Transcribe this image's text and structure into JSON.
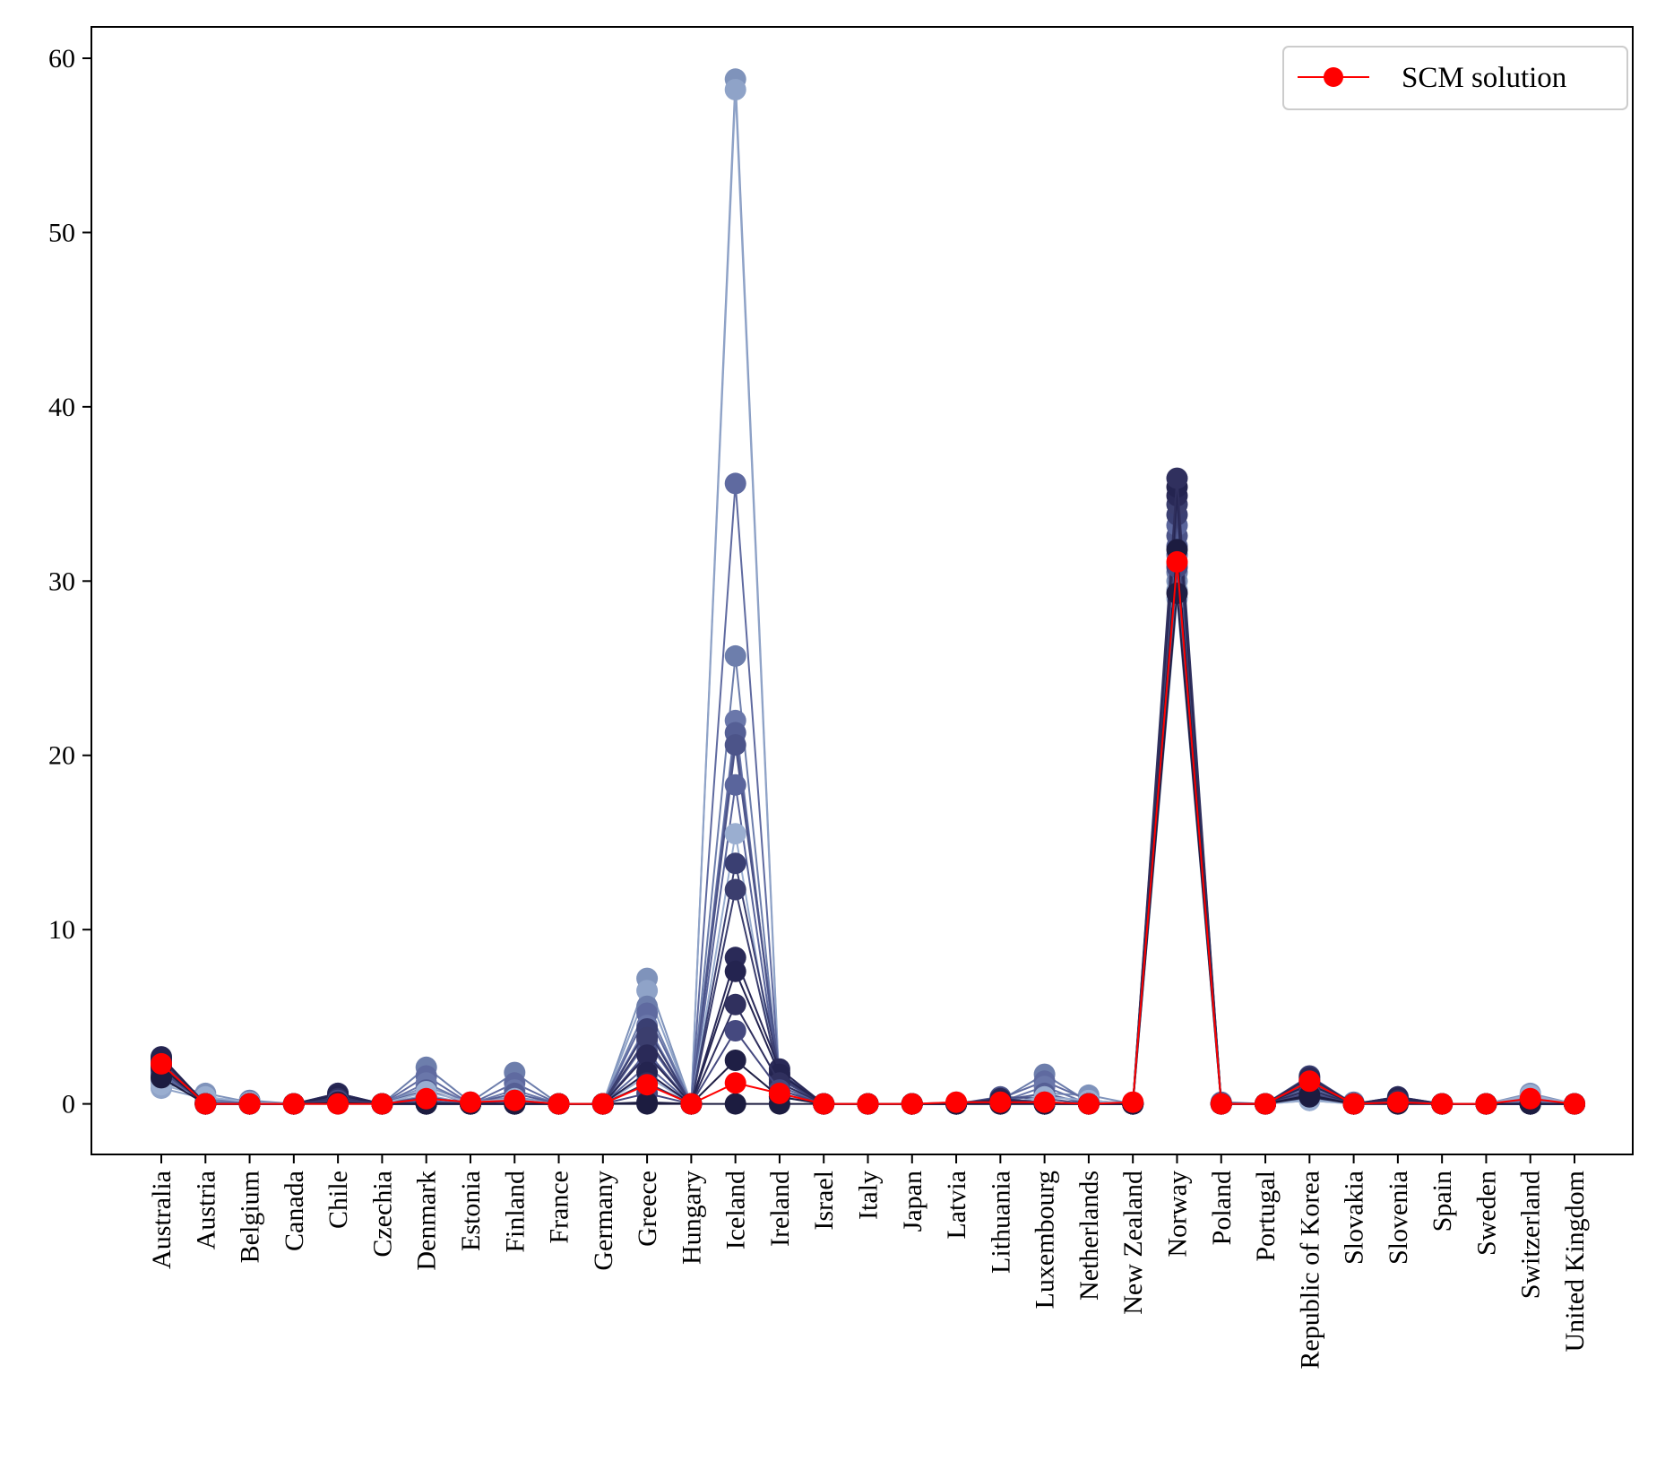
{
  "chart_data": {
    "type": "line",
    "categories": [
      "Australia",
      "Austria",
      "Belgium",
      "Canada",
      "Chile",
      "Czechia",
      "Denmark",
      "Estonia",
      "Finland",
      "France",
      "Germany",
      "Greece",
      "Hungary",
      "Iceland",
      "Ireland",
      "Israel",
      "Italy",
      "Japan",
      "Latvia",
      "Lithuania",
      "Luxembourg",
      "Netherlands",
      "New Zealand",
      "Norway",
      "Poland",
      "Portugal",
      "Republic of Korea",
      "Slovakia",
      "Slovenia",
      "Spain",
      "Sweden",
      "Switzerland",
      "United Kingdom"
    ],
    "ylim": [
      -2.9,
      61.8
    ],
    "yticks": [
      0,
      10,
      20,
      30,
      40,
      50,
      60
    ],
    "grid": false,
    "legend_position": "top-right",
    "background_series": [
      {
        "color": "#7f93bb",
        "values": [
          1.2,
          0.6,
          0.1,
          0,
          0.1,
          0,
          1.0,
          0.1,
          0.4,
          0,
          0,
          7.2,
          0,
          58.8,
          0.6,
          0,
          0,
          0,
          0,
          0.1,
          0.6,
          0.5,
          0,
          30.0,
          0,
          0,
          0.3,
          0,
          0,
          0,
          0,
          0.6,
          0
        ]
      },
      {
        "color": "#8fa3c8",
        "values": [
          0.9,
          0.3,
          0,
          0,
          0,
          0,
          0.5,
          0,
          0.2,
          0,
          0,
          6.5,
          0,
          58.2,
          0.4,
          0,
          0,
          0,
          0,
          0,
          0.4,
          0.2,
          0,
          29.5,
          0,
          0,
          0.2,
          0,
          0,
          0,
          0,
          0.4,
          0
        ]
      },
      {
        "color": "#6d7eac",
        "values": [
          1.4,
          0.2,
          0.2,
          0,
          0.3,
          0,
          2.1,
          0.1,
          1.8,
          0,
          0,
          5.6,
          0,
          25.7,
          1.0,
          0,
          0,
          0,
          0.1,
          0.2,
          1.7,
          0.1,
          0.1,
          30.5,
          0,
          0,
          0.5,
          0.1,
          0.1,
          0,
          0,
          0.3,
          0
        ]
      },
      {
        "color": "#5f6aa0",
        "values": [
          1.6,
          0.1,
          0.1,
          0,
          0.4,
          0,
          1.6,
          0,
          1.2,
          0,
          0,
          5.2,
          0,
          35.6,
          1.2,
          0,
          0,
          0,
          0,
          0.3,
          1.3,
          0.2,
          0,
          31.0,
          0.1,
          0,
          0.7,
          0,
          0.2,
          0,
          0,
          0.1,
          0
        ]
      },
      {
        "color": "#6a77aa",
        "values": [
          1.8,
          0,
          0,
          0,
          0.2,
          0,
          1.2,
          0,
          0.8,
          0,
          0,
          4.5,
          0,
          22.0,
          0.8,
          0,
          0,
          0,
          0,
          0.1,
          1.0,
          0,
          0,
          31.5,
          0,
          0,
          1.0,
          0,
          0,
          0,
          0,
          0.2,
          0
        ]
      },
      {
        "color": "#555f95",
        "values": [
          2.0,
          0,
          0,
          0,
          0.5,
          0,
          0.8,
          0,
          0.6,
          0,
          0,
          3.6,
          0,
          21.3,
          1.4,
          0,
          0,
          0,
          0,
          0.2,
          0.6,
          0,
          0,
          32.0,
          0,
          0,
          1.2,
          0,
          0.3,
          0,
          0,
          0,
          0
        ]
      },
      {
        "color": "#4c5489",
        "values": [
          2.2,
          0,
          0,
          0,
          0.6,
          0,
          0.4,
          0,
          0.3,
          0,
          0,
          3.0,
          0,
          20.6,
          1.6,
          0,
          0,
          0,
          0,
          0.4,
          0.3,
          0,
          0,
          32.6,
          0,
          0,
          1.4,
          0,
          0.4,
          0,
          0,
          0,
          0
        ]
      },
      {
        "color": "#5a659c",
        "values": [
          1.7,
          0,
          0,
          0,
          0.3,
          0,
          0.2,
          0,
          0.1,
          0,
          0,
          2.2,
          0,
          18.3,
          1.0,
          0,
          0,
          0,
          0,
          0.1,
          0.1,
          0,
          0,
          33.2,
          0,
          0,
          0.9,
          0,
          0.1,
          0,
          0,
          0,
          0
        ]
      },
      {
        "color": "#9aaed0",
        "values": [
          1.1,
          0.4,
          0.1,
          0,
          0.1,
          0,
          0.7,
          0.1,
          0.3,
          0,
          0,
          1.6,
          0,
          15.5,
          0.5,
          0,
          0,
          0,
          0,
          0,
          0.4,
          0.2,
          0,
          29.0,
          0,
          0,
          0.2,
          0,
          0,
          0,
          0,
          0.5,
          0
        ]
      },
      {
        "color": "#3a3f72",
        "values": [
          2.4,
          0,
          0,
          0,
          0.4,
          0,
          0.1,
          0,
          0.2,
          0,
          0,
          4.3,
          0,
          13.8,
          1.8,
          0,
          0,
          0,
          0,
          0.3,
          0.1,
          0,
          0,
          33.8,
          0,
          0,
          1.6,
          0,
          0.3,
          0,
          0,
          0,
          0
        ]
      },
      {
        "color": "#3b3e6e",
        "values": [
          2.5,
          0,
          0,
          0,
          0.5,
          0,
          0,
          0,
          0,
          0,
          0,
          3.8,
          0,
          12.3,
          1.5,
          0,
          0,
          0,
          0,
          0.2,
          0,
          0,
          0,
          34.4,
          0,
          0,
          1.3,
          0,
          0.2,
          0,
          0,
          0,
          0
        ]
      },
      {
        "color": "#2a2a58",
        "values": [
          2.6,
          0,
          0,
          0,
          0.6,
          0,
          0,
          0,
          0,
          0,
          0,
          2.8,
          0,
          8.4,
          2.0,
          0,
          0,
          0,
          0,
          0.3,
          0,
          0,
          0,
          34.9,
          0,
          0,
          1.5,
          0,
          0.4,
          0,
          0,
          0,
          0
        ]
      },
      {
        "color": "#242450",
        "values": [
          2.7,
          0,
          0,
          0,
          0.5,
          0,
          0,
          0,
          0,
          0,
          0,
          1.8,
          0,
          7.6,
          1.7,
          0,
          0,
          0,
          0,
          0.2,
          0,
          0,
          0,
          35.4,
          0,
          0,
          1.1,
          0,
          0.3,
          0,
          0,
          0,
          0
        ]
      },
      {
        "color": "#30305e",
        "values": [
          2.3,
          0,
          0,
          0,
          0.3,
          0,
          0,
          0,
          0,
          0,
          0,
          1.2,
          0,
          5.7,
          1.2,
          0,
          0,
          0,
          0,
          0.1,
          0,
          0,
          0,
          35.9,
          0,
          0,
          0.8,
          0,
          0.2,
          0,
          0,
          0,
          0
        ]
      },
      {
        "color": "#45497f",
        "values": [
          1.9,
          0,
          0,
          0,
          0.2,
          0,
          0,
          0,
          0,
          0,
          0,
          0.6,
          0,
          4.2,
          0.8,
          0,
          0,
          0,
          0,
          0,
          0,
          0,
          0,
          30.8,
          0,
          0,
          0.6,
          0,
          0.1,
          0,
          0,
          0,
          0
        ]
      },
      {
        "color": "#1f1f45",
        "values": [
          2.1,
          0,
          0,
          0,
          0.1,
          0,
          0,
          0,
          0,
          0,
          0,
          0.1,
          0,
          2.5,
          0.4,
          0,
          0,
          0,
          0,
          0,
          0,
          0,
          0,
          29.3,
          0,
          0,
          0.4,
          0,
          0,
          0,
          0,
          0,
          0
        ]
      },
      {
        "color": "#1c1c40",
        "values": [
          1.5,
          0,
          0,
          0,
          0,
          0,
          0,
          0,
          0,
          0,
          0,
          0,
          0,
          0,
          0,
          0,
          0,
          0,
          0,
          0,
          0,
          0,
          0,
          31.8,
          0,
          0,
          0.5,
          0,
          0,
          0,
          0,
          0,
          0
        ]
      }
    ],
    "series": [
      {
        "name": "SCM solution",
        "color": "#ff0000",
        "values": [
          2.3,
          0,
          0,
          0,
          0,
          0,
          0.3,
          0.1,
          0.2,
          0,
          0,
          1.1,
          0,
          1.2,
          0.6,
          0,
          0,
          0,
          0.1,
          0.1,
          0.1,
          0,
          0.1,
          31.1,
          0,
          0,
          1.3,
          0,
          0.1,
          0,
          0,
          0.3,
          0
        ]
      }
    ]
  }
}
